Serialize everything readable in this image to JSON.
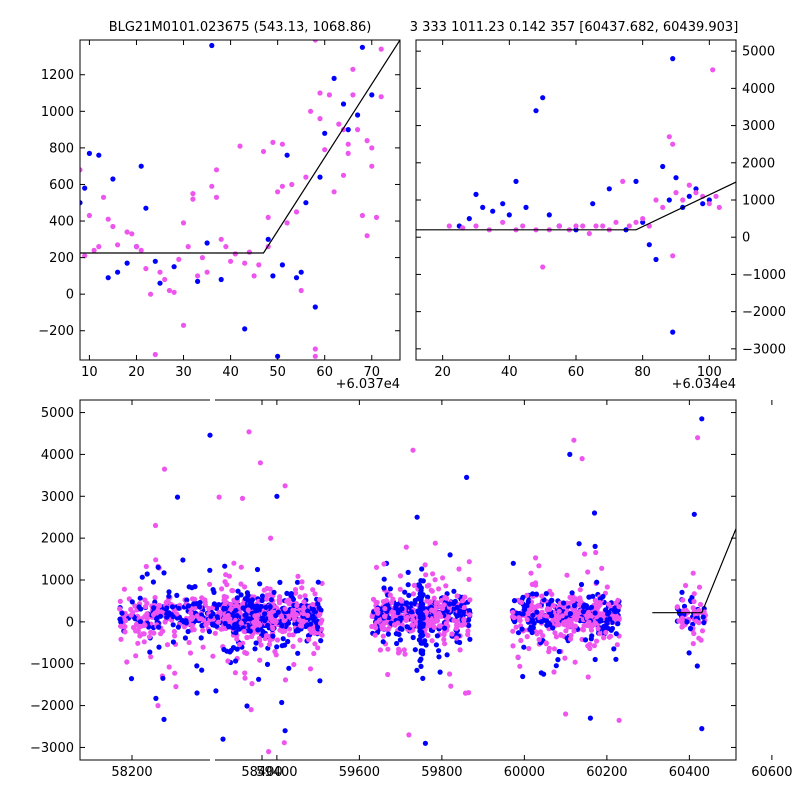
{
  "chart_data": [
    {
      "type": "scatter",
      "panel": "top-left",
      "title": "BLG21M0101.023675 (543.13, 1068.86)",
      "offset_label": "+6.037e4",
      "xlim": [
        8,
        76
      ],
      "ylim": [
        -360,
        1390
      ],
      "x_ticks": [
        10,
        20,
        30,
        40,
        50,
        60,
        70
      ],
      "y_ticks": [
        -200,
        0,
        200,
        400,
        600,
        800,
        1000,
        1200
      ],
      "y_axis_side": "left",
      "grid": false,
      "colors": {
        "series_a": "#0000ff",
        "series_b": "#ee55ee",
        "model": "#000000"
      },
      "model_line": [
        [
          8,
          225
        ],
        [
          47,
          225
        ],
        [
          76,
          1390
        ]
      ],
      "series": [
        {
          "color": "#0000ff",
          "points": [
            [
              8,
              500
            ],
            [
              9,
              580
            ],
            [
              10,
              770
            ],
            [
              12,
              760
            ],
            [
              14,
              90
            ],
            [
              15,
              630
            ],
            [
              16,
              120
            ],
            [
              18,
              170
            ],
            [
              20,
              260
            ],
            [
              21,
              700
            ],
            [
              22,
              470
            ],
            [
              24,
              180
            ],
            [
              25,
              60
            ],
            [
              28,
              150
            ],
            [
              33,
              70
            ],
            [
              35,
              280
            ],
            [
              36,
              1360
            ],
            [
              38,
              80
            ],
            [
              43,
              -190
            ],
            [
              48,
              300
            ],
            [
              49,
              100
            ],
            [
              50,
              -340
            ],
            [
              51,
              160
            ],
            [
              52,
              760
            ],
            [
              54,
              90
            ],
            [
              55,
              120
            ],
            [
              56,
              500
            ],
            [
              58,
              -70
            ],
            [
              59,
              640
            ],
            [
              60,
              880
            ],
            [
              62,
              1180
            ],
            [
              64,
              1040
            ],
            [
              65,
              900
            ],
            [
              67,
              980
            ],
            [
              68,
              1350
            ],
            [
              70,
              1090
            ]
          ]
        },
        {
          "color": "#ee55ee",
          "points": [
            [
              8,
              680
            ],
            [
              9,
              210
            ],
            [
              10,
              430
            ],
            [
              11,
              240
            ],
            [
              12,
              260
            ],
            [
              13,
              530
            ],
            [
              14,
              410
            ],
            [
              15,
              370
            ],
            [
              16,
              270
            ],
            [
              18,
              340
            ],
            [
              19,
              330
            ],
            [
              20,
              260
            ],
            [
              21,
              240
            ],
            [
              22,
              140
            ],
            [
              23,
              0
            ],
            [
              24,
              -330
            ],
            [
              25,
              120
            ],
            [
              26,
              80
            ],
            [
              27,
              20
            ],
            [
              28,
              10
            ],
            [
              29,
              190
            ],
            [
              30,
              390
            ],
            [
              30,
              -170
            ],
            [
              31,
              260
            ],
            [
              32,
              550
            ],
            [
              32,
              520
            ],
            [
              33,
              100
            ],
            [
              34,
              200
            ],
            [
              35,
              120
            ],
            [
              36,
              590
            ],
            [
              37,
              530
            ],
            [
              37,
              680
            ],
            [
              38,
              300
            ],
            [
              39,
              260
            ],
            [
              40,
              180
            ],
            [
              41,
              220
            ],
            [
              42,
              810
            ],
            [
              43,
              170
            ],
            [
              44,
              230
            ],
            [
              45,
              100
            ],
            [
              46,
              160
            ],
            [
              47,
              780
            ],
            [
              48,
              260
            ],
            [
              48,
              420
            ],
            [
              49,
              830
            ],
            [
              50,
              560
            ],
            [
              51,
              590
            ],
            [
              51,
              820
            ],
            [
              52,
              390
            ],
            [
              53,
              600
            ],
            [
              54,
              450
            ],
            [
              55,
              20
            ],
            [
              56,
              640
            ],
            [
              57,
              1000
            ],
            [
              58,
              1390
            ],
            [
              58,
              -300
            ],
            [
              58,
              -340
            ],
            [
              59,
              1100
            ],
            [
              59,
              960
            ],
            [
              60,
              790
            ],
            [
              61,
              1090
            ],
            [
              62,
              560
            ],
            [
              63,
              930
            ],
            [
              64,
              900
            ],
            [
              64,
              650
            ],
            [
              65,
              770
            ],
            [
              65,
              820
            ],
            [
              66,
              1090
            ],
            [
              66,
              1230
            ],
            [
              67,
              900
            ],
            [
              68,
              430
            ],
            [
              69,
              840
            ],
            [
              69,
              320
            ],
            [
              70,
              800
            ],
            [
              70,
              700
            ],
            [
              71,
              420
            ],
            [
              72,
              1340
            ],
            [
              72,
              1080
            ]
          ]
        }
      ]
    },
    {
      "type": "scatter",
      "panel": "top-right",
      "title": "3 333 1011.23 0.142 357 [60437.682, 60439.903]",
      "offset_label": "+6.034e4",
      "xlim": [
        12,
        108
      ],
      "ylim": [
        -3300,
        5300
      ],
      "x_ticks": [
        20,
        40,
        60,
        80,
        100
      ],
      "y_ticks": [
        -3000,
        -2000,
        -1000,
        0,
        1000,
        2000,
        3000,
        4000,
        5000
      ],
      "y_axis_side": "right",
      "grid": false,
      "colors": {
        "series_a": "#0000ff",
        "series_b": "#ee55ee",
        "model": "#000000"
      },
      "model_line": [
        [
          12,
          200
        ],
        [
          78,
          200
        ],
        [
          108,
          1480
        ]
      ],
      "series": [
        {
          "color": "#0000ff",
          "points": [
            [
              25,
              300
            ],
            [
              28,
              500
            ],
            [
              30,
              1150
            ],
            [
              32,
              800
            ],
            [
              35,
              700
            ],
            [
              38,
              900
            ],
            [
              40,
              600
            ],
            [
              42,
              1500
            ],
            [
              45,
              800
            ],
            [
              48,
              3400
            ],
            [
              50,
              3750
            ],
            [
              52,
              600
            ],
            [
              55,
              300
            ],
            [
              60,
              200
            ],
            [
              65,
              900
            ],
            [
              70,
              1300
            ],
            [
              75,
              200
            ],
            [
              78,
              1500
            ],
            [
              80,
              400
            ],
            [
              82,
              -200
            ],
            [
              84,
              -600
            ],
            [
              86,
              1900
            ],
            [
              88,
              1000
            ],
            [
              89,
              4800
            ],
            [
              89,
              -2550
            ],
            [
              90,
              1600
            ],
            [
              92,
              800
            ],
            [
              94,
              1100
            ],
            [
              96,
              1300
            ],
            [
              98,
              900
            ],
            [
              100,
              1000
            ]
          ]
        },
        {
          "color": "#ee55ee",
          "points": [
            [
              22,
              300
            ],
            [
              26,
              250
            ],
            [
              30,
              300
            ],
            [
              34,
              200
            ],
            [
              38,
              400
            ],
            [
              42,
              200
            ],
            [
              44,
              300
            ],
            [
              48,
              200
            ],
            [
              50,
              -800
            ],
            [
              52,
              200
            ],
            [
              55,
              300
            ],
            [
              58,
              200
            ],
            [
              60,
              300
            ],
            [
              62,
              300
            ],
            [
              64,
              100
            ],
            [
              66,
              300
            ],
            [
              68,
              300
            ],
            [
              70,
              200
            ],
            [
              72,
              400
            ],
            [
              74,
              1500
            ],
            [
              76,
              300
            ],
            [
              78,
              400
            ],
            [
              80,
              500
            ],
            [
              82,
              300
            ],
            [
              84,
              1000
            ],
            [
              86,
              800
            ],
            [
              88,
              2700
            ],
            [
              89,
              2500
            ],
            [
              89,
              -500
            ],
            [
              90,
              1200
            ],
            [
              92,
              1000
            ],
            [
              94,
              1400
            ],
            [
              96,
              1200
            ],
            [
              98,
              1100
            ],
            [
              100,
              900
            ],
            [
              101,
              4500
            ],
            [
              102,
              1100
            ],
            [
              103,
              800
            ]
          ]
        }
      ]
    },
    {
      "type": "scatter",
      "panel": "bottom",
      "xlim": [
        58120,
        60680
      ],
      "ylim": [
        -3300,
        5300
      ],
      "x_ticks": [
        58200,
        58400,
        59400,
        59600,
        59800,
        60000,
        60200,
        60400,
        60600
      ],
      "y_ticks": [
        -3000,
        -2000,
        -1000,
        0,
        1000,
        2000,
        3000,
        4000,
        5000
      ],
      "y_axis_side": "left",
      "grid": false,
      "colors": {
        "series_a": "#0000ff",
        "series_b": "#ee55ee",
        "model": "#000000"
      },
      "model_line": [
        [
          60310,
          220
        ],
        [
          60430,
          220
        ],
        [
          60640,
          5300
        ]
      ],
      "seasons": [
        {
          "x": [
            58180,
            58420
          ]
        },
        {
          "x": [
            59270,
            59510
          ]
        },
        {
          "x": [
            59630,
            59870
          ]
        },
        {
          "x": [
            59970,
            60230
          ]
        },
        {
          "x": [
            60370,
            60440
          ]
        }
      ],
      "outliers": [
        {
          "color": "#0000ff",
          "points": [
            [
              58270,
              2980
            ],
            [
              58320,
              4460
            ],
            [
              58340,
              -2800
            ],
            [
              59400,
              3000
            ],
            [
              59740,
              2500
            ],
            [
              59820,
              1600
            ],
            [
              59860,
              3450
            ],
            [
              60110,
              4000
            ],
            [
              60170,
              2600
            ],
            [
              60430,
              4850
            ],
            [
              60430,
              -2550
            ],
            [
              58300,
              -1700
            ],
            [
              59420,
              -2600
            ],
            [
              59760,
              -2900
            ],
            [
              60160,
              -2300
            ]
          ]
        },
        {
          "color": "#ee55ee",
          "points": [
            [
              58250,
              3650
            ],
            [
              58380,
              4540
            ],
            [
              58370,
              2950
            ],
            [
              59260,
              2980
            ],
            [
              59360,
              3800
            ],
            [
              59420,
              3250
            ],
            [
              59730,
              4100
            ],
            [
              60120,
              4340
            ],
            [
              60140,
              3900
            ],
            [
              60420,
              4400
            ],
            [
              58240,
              -2000
            ],
            [
              59380,
              -3100
            ],
            [
              59720,
              -2700
            ],
            [
              60100,
              -2200
            ]
          ]
        }
      ]
    }
  ]
}
